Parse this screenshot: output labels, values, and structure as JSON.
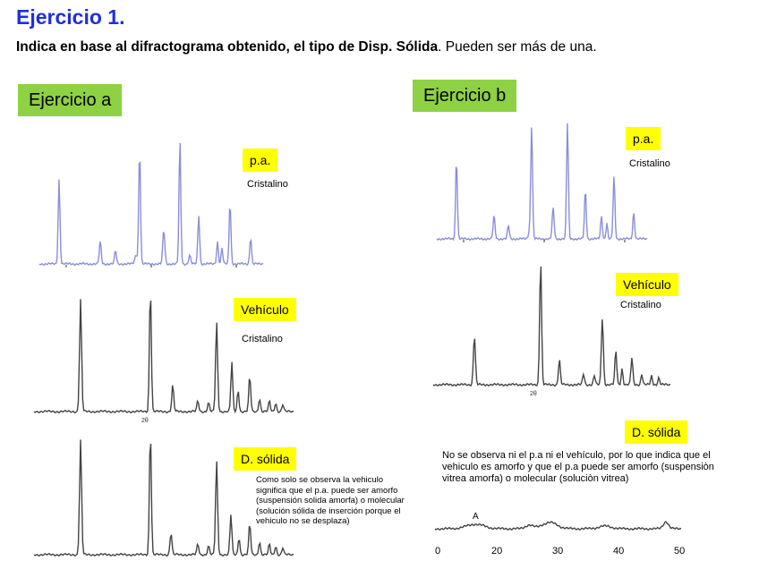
{
  "header": {
    "title": "Ejercicio 1.",
    "instruction_bold": "Indica en base al difractograma obtenido, el tipo de Disp. Sólida",
    "instruction_rest": ". Pueden ser más de una."
  },
  "exercise_a": {
    "label": "Ejercicio a",
    "panels": [
      {
        "label": "p.a.",
        "description": "Cristalino"
      },
      {
        "label": "Vehículo",
        "description": "Cristalino"
      },
      {
        "label": "D. sólida",
        "description": "Como solo se observa la vehiculo significa que el p.a. puede ser amorfo (suspensión solida amorfa) o molecular (solución sólida de inserción porque el vehiculo no se desplaza)"
      }
    ],
    "axis_label": "2θ"
  },
  "exercise_b": {
    "label": "Ejercicio b",
    "panels": [
      {
        "label": "p.a.",
        "description": "Cristalino"
      },
      {
        "label": "Vehículo",
        "description": "Cristalino"
      },
      {
        "label": "D. sólida",
        "description": "No se observa ni el p.a ni el vehículo, por lo que indica que el vehiculo es amorfo y que el p.a puede ser amorfo (suspensiòn vitrea amorfa) o molecular (soluciòn vitrea)"
      }
    ],
    "axis_label": "2θ",
    "amorphous_marker": "A",
    "x_ticks": [
      "0",
      "20",
      "30",
      "40",
      "50"
    ]
  },
  "colors": {
    "title": "#1f2fd6",
    "green_label": "#8ed143",
    "yellow_label": "#ffff00",
    "pa_trace": "#8b8ed8",
    "trace": "#444444"
  }
}
